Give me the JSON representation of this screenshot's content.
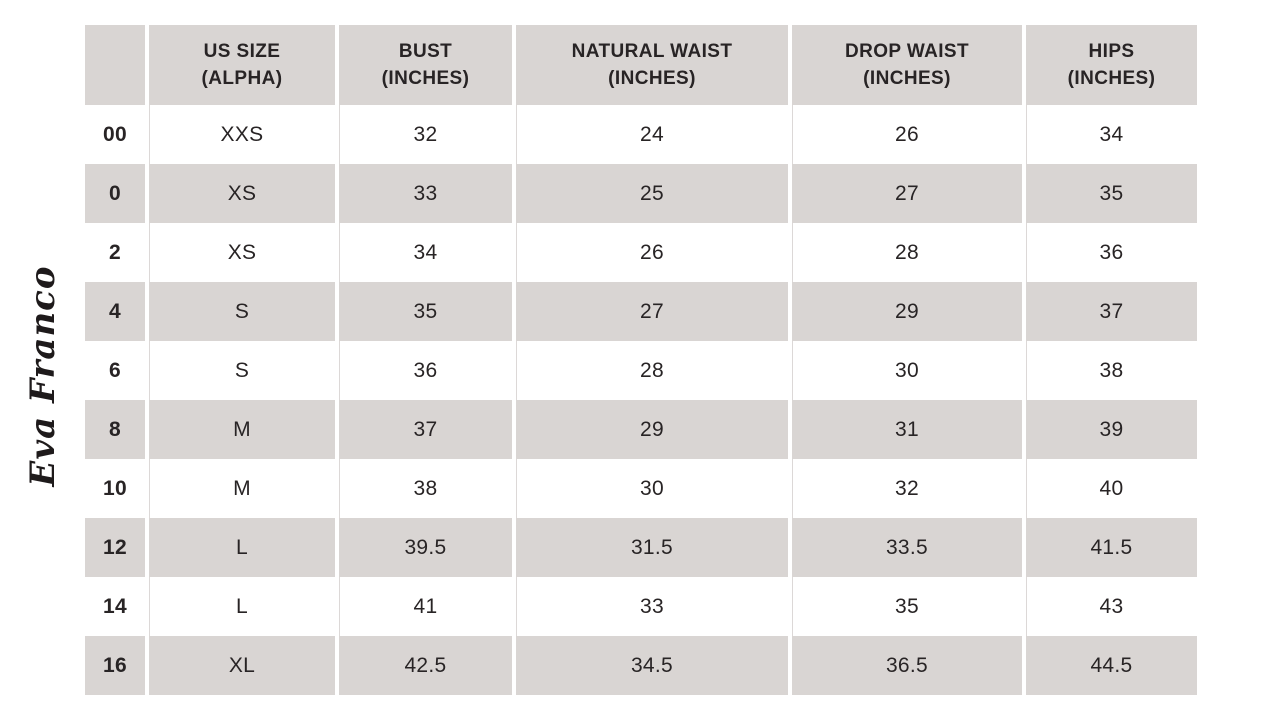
{
  "logo": {
    "text": "Eva Franco"
  },
  "chart_data": {
    "type": "table",
    "columns": [
      {
        "line1": "US SIZE",
        "line2": "(ALPHA)"
      },
      {
        "line1": "BUST",
        "line2": "(INCHES)"
      },
      {
        "line1": "NATURAL WAIST",
        "line2": "(INCHES)"
      },
      {
        "line1": "DROP WAIST",
        "line2": "(INCHES)"
      },
      {
        "line1": "HIPS",
        "line2": "(INCHES)"
      }
    ],
    "rows": [
      {
        "us_size": "00",
        "alpha_size": "XXS",
        "bust": "32",
        "natural_waist": "24",
        "drop_waist": "26",
        "hips": "34"
      },
      {
        "us_size": "0",
        "alpha_size": "XS",
        "bust": "33",
        "natural_waist": "25",
        "drop_waist": "27",
        "hips": "35"
      },
      {
        "us_size": "2",
        "alpha_size": "XS",
        "bust": "34",
        "natural_waist": "26",
        "drop_waist": "28",
        "hips": "36"
      },
      {
        "us_size": "4",
        "alpha_size": "S",
        "bust": "35",
        "natural_waist": "27",
        "drop_waist": "29",
        "hips": "37"
      },
      {
        "us_size": "6",
        "alpha_size": "S",
        "bust": "36",
        "natural_waist": "28",
        "drop_waist": "30",
        "hips": "38"
      },
      {
        "us_size": "8",
        "alpha_size": "M",
        "bust": "37",
        "natural_waist": "29",
        "drop_waist": "31",
        "hips": "39"
      },
      {
        "us_size": "10",
        "alpha_size": "M",
        "bust": "38",
        "natural_waist": "30",
        "drop_waist": "32",
        "hips": "40"
      },
      {
        "us_size": "12",
        "alpha_size": "L",
        "bust": "39.5",
        "natural_waist": "31.5",
        "drop_waist": "33.5",
        "hips": "41.5"
      },
      {
        "us_size": "14",
        "alpha_size": "L",
        "bust": "41",
        "natural_waist": "33",
        "drop_waist": "35",
        "hips": "43"
      },
      {
        "us_size": "16",
        "alpha_size": "XL",
        "bust": "42.5",
        "natural_waist": "34.5",
        "drop_waist": "36.5",
        "hips": "44.5"
      }
    ],
    "colors": {
      "stripe_gray": "#d9d5d3",
      "header_bg": "#d9d5d3",
      "text": "#282425",
      "divider": "#dcd8d7",
      "background": "#ffffff"
    }
  }
}
